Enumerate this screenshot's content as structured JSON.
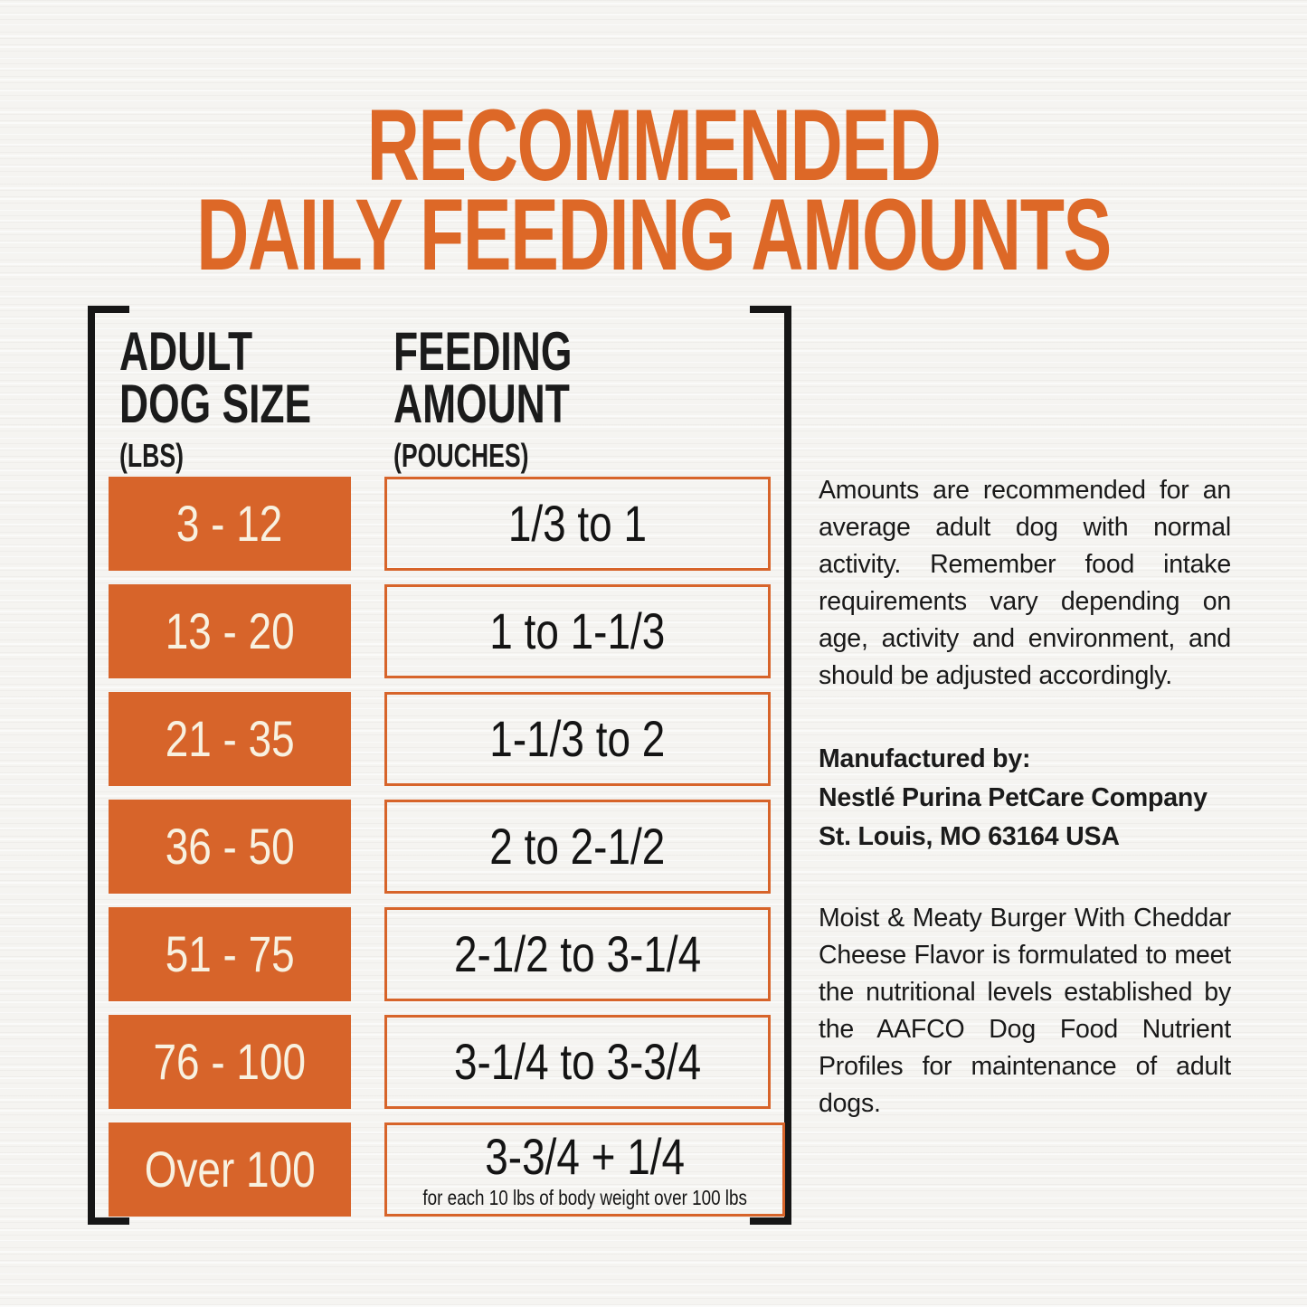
{
  "title": {
    "line1": "RECOMMENDED",
    "line2": "DAILY FEEDING AMOUNTS"
  },
  "table": {
    "size_header": {
      "line1": "ADULT",
      "line2": "DOG SIZE",
      "unit": "(LBS)"
    },
    "amount_header": {
      "line1": "FEEDING",
      "line2": "AMOUNT",
      "unit": "(POUCHES)"
    },
    "rows": [
      {
        "size": "3 - 12",
        "amount": "1/3 to 1"
      },
      {
        "size": "13 - 20",
        "amount": "1 to 1-1/3"
      },
      {
        "size": "21 - 35",
        "amount": "1-1/3 to 2"
      },
      {
        "size": "36 - 50",
        "amount": "2 to 2-1/2"
      },
      {
        "size": "51 - 75",
        "amount": "2-1/2 to 3-1/4"
      },
      {
        "size": "76 - 100",
        "amount": "3-1/4 to 3-3/4"
      },
      {
        "size": "Over 100",
        "amount": "3-3/4 + 1/4",
        "note": "for each 10 lbs of body weight over 100 lbs"
      }
    ]
  },
  "info": {
    "activity_note": "Amounts are recommended for an average adult dog with normal activity. Remember food intake requirements vary depending on age, activity and environment, and should be adjusted accordingly.",
    "manufactured": {
      "label": "Manufactured by:",
      "company": "Nestlé Purina PetCare Company",
      "address": "St. Louis, MO 63164 USA"
    },
    "aafco_statement": "Moist & Meaty Burger With Cheddar Cheese Flavor is formulated to meet the nutritional levels established by the AAFCO Dog Food Nutrient Profiles for maintenance of adult dogs."
  },
  "colors": {
    "accent_orange": "#d7642a",
    "title_orange": "#dd6827",
    "text_black": "#1b1b1b",
    "cream_text": "#f8f1e0",
    "bracket_black": "#161616",
    "paper": "#f5f4f1"
  }
}
